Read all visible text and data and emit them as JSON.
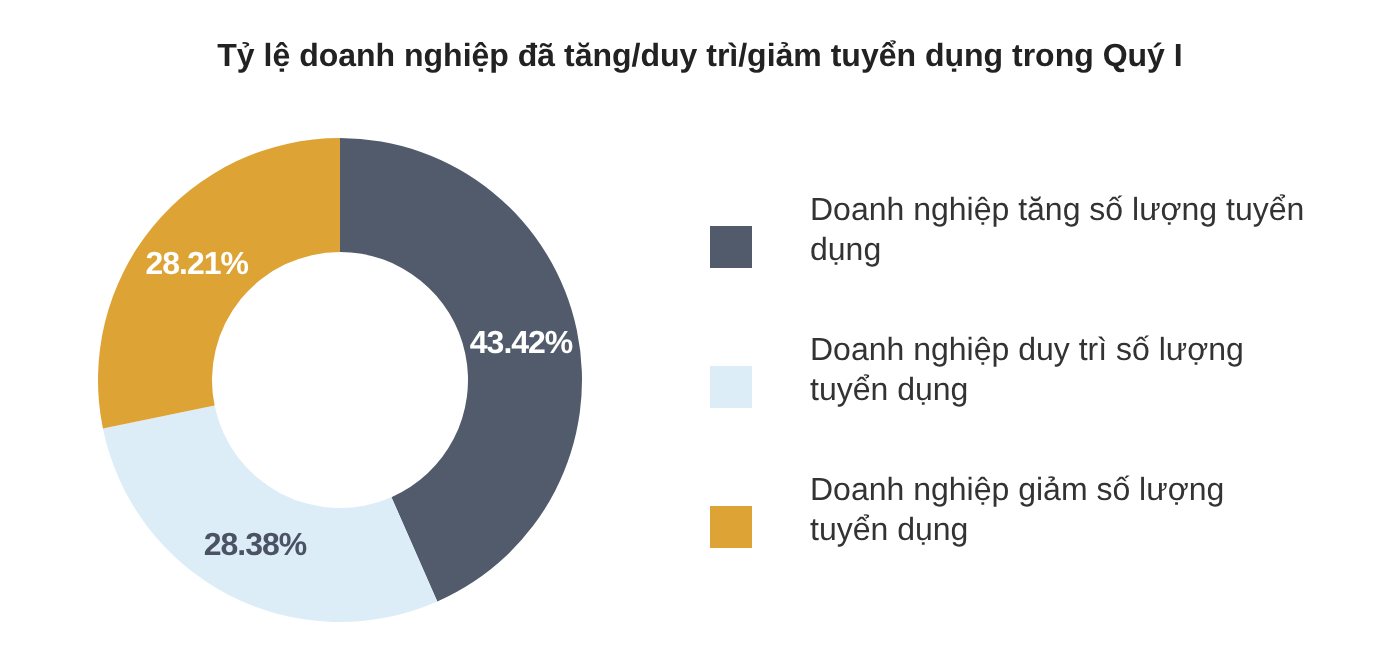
{
  "chart_data": {
    "type": "donut",
    "title": "Tỷ lệ doanh nghiệp đã tăng/duy trì/giảm tuyển dụng trong Quý I",
    "categories": [
      "Doanh nghiệp tăng số lượng tuyển dụng",
      "Doanh nghiệp duy trì số lượng tuyển dụng",
      "Doanh nghiệp giảm số lượng tuyển dụng"
    ],
    "values": [
      43.42,
      28.38,
      28.21
    ],
    "colors": [
      "#525b6b",
      "#dcedf8",
      "#dea335"
    ],
    "value_labels": [
      "43.42%",
      "28.38%",
      "28.21%"
    ],
    "legend": "right"
  }
}
